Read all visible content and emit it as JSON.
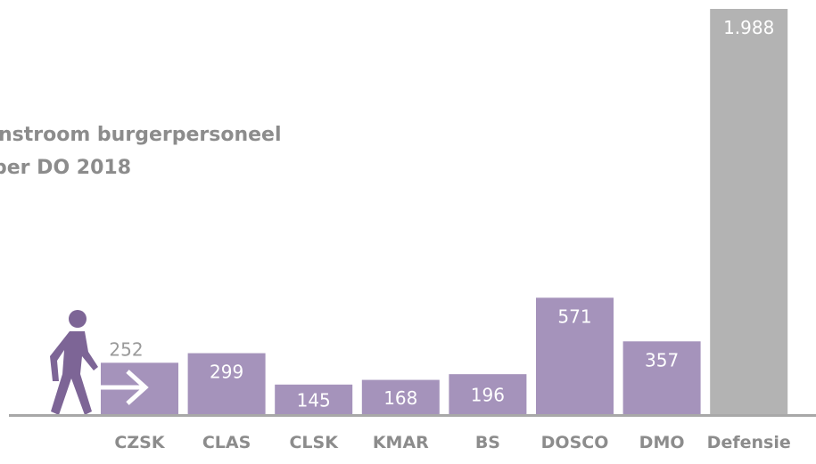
{
  "chart_data": {
    "type": "bar",
    "title": [
      "nstroom burgerpersoneel",
      "per DO 2018"
    ],
    "categories": [
      "CZSK",
      "CLAS",
      "CLSK",
      "KMAR",
      "BS",
      "DOSCO",
      "DMO",
      "Defensie"
    ],
    "values": [
      252,
      299,
      145,
      168,
      196,
      571,
      357,
      1988
    ],
    "value_labels": [
      "252",
      "299",
      "145",
      "168",
      "196",
      "571",
      "357",
      "1.988"
    ],
    "colors": [
      "#a593bb",
      "#a593bb",
      "#a593bb",
      "#a593bb",
      "#a593bb",
      "#a593bb",
      "#a593bb",
      "#b3b3b3"
    ]
  }
}
